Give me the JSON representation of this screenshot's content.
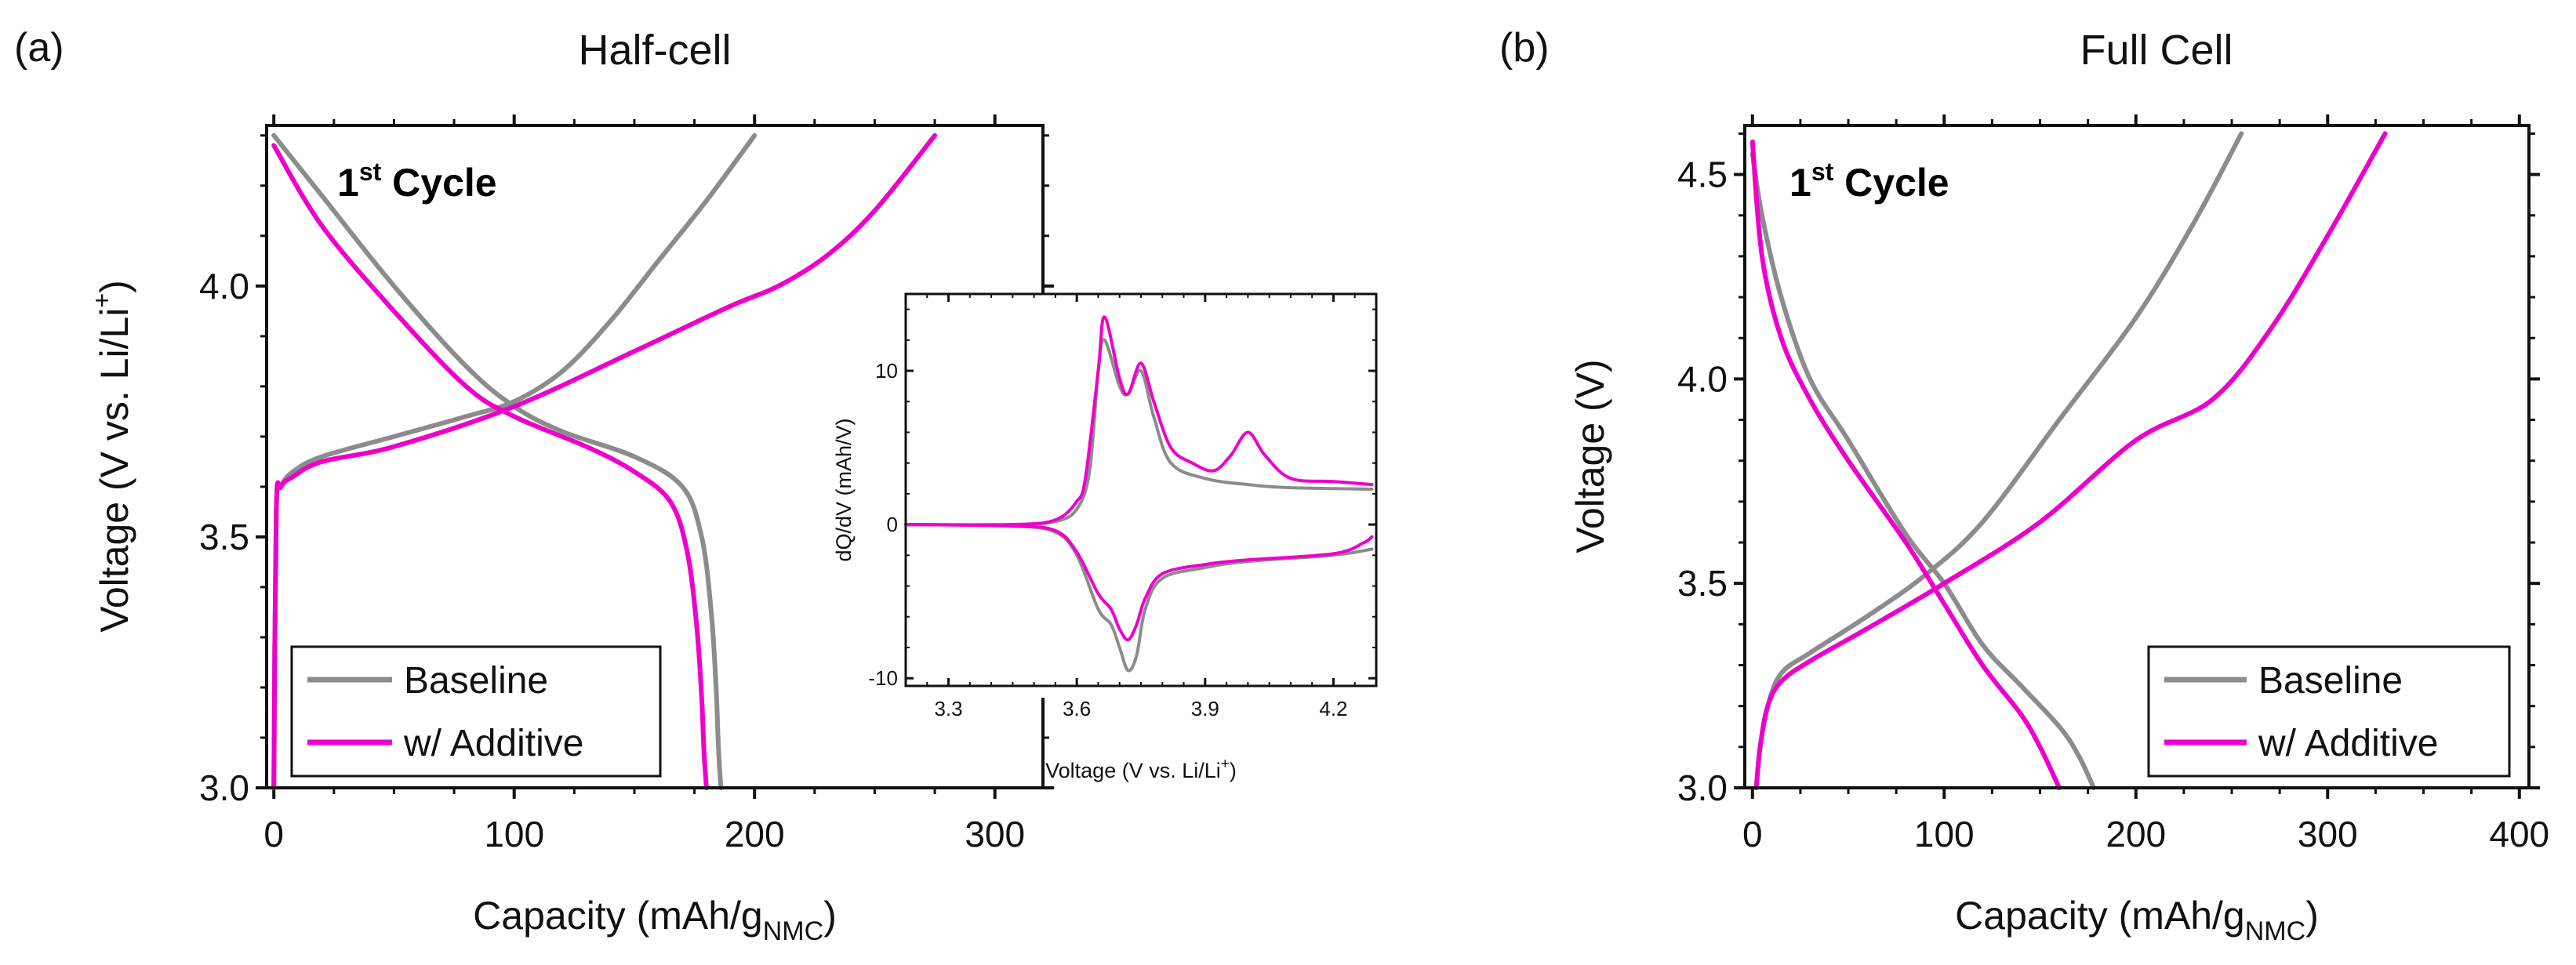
{
  "chart_data": [
    {
      "type": "line",
      "panel_label": "(a)",
      "title": "Half-cell",
      "xlabel": "Capacity (mAh/g",
      "xlabel_sub": "NMC",
      "xlabel_end": ")",
      "ylabel": "Voltage (V vs. Li/Li",
      "ylabel_sup": "+",
      "ylabel_end": ")",
      "xlim": [
        -3,
        320
      ],
      "ylim": [
        3.0,
        4.32
      ],
      "xticks": [
        0,
        100,
        200,
        300
      ],
      "yticks": [
        3.0,
        3.5,
        4.0
      ],
      "ytick_labels": [
        "3.0",
        "3.5",
        "4.0"
      ],
      "annotation": {
        "text": "1",
        "sup": "st",
        "rest": " Cycle"
      },
      "legend": [
        "Baseline",
        "w/ Additive"
      ],
      "colors": {
        "Baseline": "#8c8c8c",
        "w/ Additive": "#ee00cc"
      },
      "series": [
        {
          "name": "Baseline",
          "segment": "charge",
          "x": [
            0,
            1,
            3,
            8,
            20,
            50,
            80,
            100,
            120,
            140,
            160,
            180,
            200
          ],
          "y": [
            3.0,
            3.55,
            3.6,
            3.63,
            3.66,
            3.7,
            3.74,
            3.77,
            3.83,
            3.93,
            4.05,
            4.17,
            4.3
          ]
        },
        {
          "name": "Baseline",
          "segment": "discharge",
          "x": [
            0,
            20,
            50,
            80,
            100,
            120,
            150,
            170,
            178,
            182,
            184,
            185,
            186
          ],
          "y": [
            4.3,
            4.18,
            4.0,
            3.84,
            3.76,
            3.71,
            3.66,
            3.6,
            3.5,
            3.35,
            3.2,
            3.08,
            3.0
          ]
        },
        {
          "name": "w/ Additive",
          "segment": "charge",
          "x": [
            0,
            1,
            3,
            8,
            20,
            50,
            100,
            150,
            190,
            210,
            230,
            250,
            275
          ],
          "y": [
            3.0,
            3.55,
            3.6,
            3.62,
            3.65,
            3.68,
            3.76,
            3.87,
            3.96,
            4.0,
            4.06,
            4.15,
            4.3
          ]
        },
        {
          "name": "w/ Additive",
          "segment": "discharge",
          "x": [
            0,
            20,
            50,
            80,
            100,
            130,
            150,
            165,
            172,
            176,
            178,
            179,
            180
          ],
          "y": [
            4.28,
            4.12,
            3.95,
            3.8,
            3.74,
            3.68,
            3.63,
            3.57,
            3.47,
            3.32,
            3.18,
            3.07,
            3.0
          ]
        }
      ]
    },
    {
      "type": "line",
      "inset": true,
      "xlabel": "Voltage (V vs. Li/Li",
      "xlabel_sup": "+",
      "xlabel_end": ")",
      "ylabel": "dQ/dV (mAh/V)",
      "xlim": [
        3.2,
        4.3
      ],
      "ylim": [
        -10.5,
        15
      ],
      "xticks": [
        3.3,
        3.6,
        3.9,
        4.2
      ],
      "xtick_labels": [
        "3.3",
        "3.6",
        "3.9",
        "4.2"
      ],
      "yticks": [
        -10,
        0,
        10
      ],
      "series": [
        {
          "name": "Baseline",
          "segment": "charge",
          "x": [
            3.2,
            3.45,
            3.55,
            3.6,
            3.63,
            3.65,
            3.665,
            3.7,
            3.72,
            3.75,
            3.78,
            3.82,
            3.9,
            4.0,
            4.1,
            4.29
          ],
          "y": [
            0,
            0,
            0.2,
            1.0,
            3.5,
            10,
            12,
            9,
            8.5,
            10,
            7,
            4,
            3,
            2.6,
            2.4,
            2.3
          ]
        },
        {
          "name": "Baseline",
          "segment": "discharge",
          "x": [
            3.2,
            3.45,
            3.55,
            3.6,
            3.65,
            3.68,
            3.7,
            3.72,
            3.74,
            3.76,
            3.8,
            3.9,
            4.0,
            4.2,
            4.29
          ],
          "y": [
            0,
            -0.1,
            -0.5,
            -2,
            -5.5,
            -6.5,
            -8,
            -9.5,
            -8.5,
            -5.5,
            -3.5,
            -2.8,
            -2.4,
            -2,
            -1.6
          ]
        },
        {
          "name": "w/ Additive",
          "segment": "charge",
          "x": [
            3.2,
            3.45,
            3.55,
            3.6,
            3.62,
            3.65,
            3.665,
            3.7,
            3.72,
            3.75,
            3.78,
            3.82,
            3.87,
            3.92,
            3.96,
            4.0,
            4.04,
            4.1,
            4.2,
            4.29
          ],
          "y": [
            0,
            0,
            0.3,
            1.5,
            3,
            10,
            13.5,
            9.5,
            8.5,
            10.5,
            8,
            5,
            4,
            3.5,
            4.5,
            6,
            4.5,
            3,
            2.8,
            2.6
          ]
        },
        {
          "name": "w/ Additive",
          "segment": "discharge",
          "x": [
            3.2,
            3.45,
            3.55,
            3.6,
            3.65,
            3.68,
            3.7,
            3.72,
            3.74,
            3.76,
            3.8,
            3.9,
            4.0,
            4.2,
            4.27,
            4.29
          ],
          "y": [
            0,
            -0.1,
            -0.4,
            -1.8,
            -4.5,
            -5.5,
            -6.8,
            -7.5,
            -6.5,
            -4.8,
            -3.2,
            -2.6,
            -2.3,
            -1.9,
            -1.2,
            -0.8
          ]
        }
      ]
    },
    {
      "type": "line",
      "panel_label": "(b)",
      "title": "Full Cell",
      "xlabel": "Capacity (mAh/g",
      "xlabel_sub": "NMC",
      "xlabel_end": ")",
      "ylabel": "Voltage (V)",
      "xlim": [
        -4,
        405
      ],
      "ylim": [
        3.0,
        4.62
      ],
      "xticks": [
        0,
        100,
        200,
        300,
        400
      ],
      "yticks": [
        3.0,
        3.5,
        4.0,
        4.5
      ],
      "ytick_labels": [
        "3.0",
        "3.5",
        "4.0",
        "4.5"
      ],
      "annotation": {
        "text": "1",
        "sup": "st",
        "rest": " Cycle"
      },
      "legend": [
        "Baseline",
        "w/ Additive"
      ],
      "colors": {
        "Baseline": "#8c8c8c",
        "w/ Additive": "#ee00cc"
      },
      "series": [
        {
          "name": "Baseline",
          "segment": "charge",
          "x": [
            2,
            4,
            8,
            15,
            30,
            60,
            90,
            120,
            160,
            200,
            230,
            255
          ],
          "y": [
            3.0,
            3.1,
            3.2,
            3.28,
            3.33,
            3.42,
            3.52,
            3.65,
            3.9,
            4.15,
            4.38,
            4.6
          ]
        },
        {
          "name": "Baseline",
          "segment": "discharge",
          "x": [
            0,
            5,
            15,
            30,
            50,
            80,
            100,
            120,
            140,
            160,
            170,
            178
          ],
          "y": [
            4.55,
            4.4,
            4.2,
            4.0,
            3.85,
            3.62,
            3.5,
            3.35,
            3.25,
            3.15,
            3.08,
            3.0
          ]
        },
        {
          "name": "w/ Additive",
          "segment": "charge",
          "x": [
            2,
            4,
            8,
            15,
            30,
            60,
            100,
            150,
            200,
            240,
            270,
            300,
            330
          ],
          "y": [
            3.0,
            3.1,
            3.2,
            3.26,
            3.31,
            3.39,
            3.5,
            3.65,
            3.85,
            3.95,
            4.12,
            4.35,
            4.6
          ]
        },
        {
          "name": "w/ Additive",
          "segment": "discharge",
          "x": [
            0,
            5,
            15,
            30,
            50,
            80,
            100,
            120,
            140,
            150,
            160
          ],
          "y": [
            4.58,
            4.3,
            4.1,
            3.95,
            3.8,
            3.6,
            3.45,
            3.3,
            3.18,
            3.1,
            3.0
          ]
        }
      ]
    }
  ]
}
